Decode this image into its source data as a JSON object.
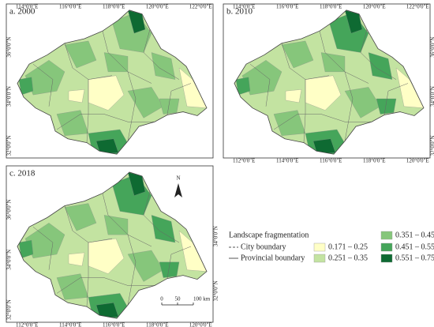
{
  "panels": [
    {
      "label": "a. 2000",
      "top_labels": [
        "114°0'0\"E",
        "116°0'0\"E",
        "118°0'0\"E",
        "120°0'0\"E",
        "122°0'0\"E"
      ],
      "left_labels": [
        "36°0'0\"N",
        "34°0'0\"N",
        "32°0'0\"N"
      ]
    },
    {
      "label": "b. 2010",
      "top_labels": [
        "114°0'0\"E",
        "116°0'0\"E",
        "118°0'0\"E",
        "120°0'0\"E",
        "122°0'0\"E"
      ],
      "bottom_labels": [
        "112°0'0\"E",
        "114°0'0\"E",
        "116°0'0\"E",
        "118°0'0\"E",
        "120°0'0\"E"
      ],
      "right_labels": [
        "36°0'0\"N",
        "34°0'0\"N",
        "32°0'0\"N"
      ]
    },
    {
      "label": "c. 2018",
      "bottom_labels": [
        "112°0'0\"E",
        "114°0'0\"E",
        "116°0'0\"E",
        "118°0'0\"E",
        "120°0'0\"E"
      ],
      "left_labels": [
        "36°0'0\"N",
        "34°0'0\"N",
        "32°0'0\"N"
      ],
      "right_labels": [
        "34°0'0\"N",
        "32°0'0\"N"
      ],
      "north": "N",
      "scale_labels": [
        "0",
        "50",
        "100 km"
      ]
    }
  ],
  "legend": {
    "title": "Landscape fragmentation",
    "boundaries": [
      "City boundary",
      "Provincial boundary"
    ],
    "classes": [
      {
        "label": "0.171 – 0.25",
        "color": "#ffffc6"
      },
      {
        "label": "0.251 – 0.35",
        "color": "#c3e3a1"
      },
      {
        "label": "0.351 – 0.45",
        "color": "#86c67b"
      },
      {
        "label": "0.451 – 0.55",
        "color": "#45a55a"
      },
      {
        "label": "0.551 – 0.75",
        "color": "#0e6a32"
      }
    ]
  }
}
